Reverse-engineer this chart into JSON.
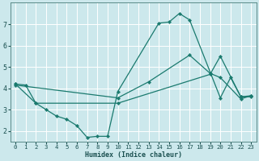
{
  "xlabel": "Humidex (Indice chaleur)",
  "background_color": "#cce8ec",
  "grid_color": "#ffffff",
  "line_color": "#1a7a6e",
  "xlim": [
    -0.5,
    23.5
  ],
  "ylim": [
    1.5,
    8.0
  ],
  "xticks": [
    0,
    1,
    2,
    3,
    4,
    5,
    6,
    7,
    8,
    9,
    10,
    11,
    12,
    13,
    14,
    15,
    16,
    17,
    18,
    19,
    20,
    21,
    22,
    23
  ],
  "yticks": [
    2,
    3,
    4,
    5,
    6,
    7
  ],
  "line1_x": [
    0,
    1,
    2,
    3,
    4,
    5,
    6,
    7,
    8,
    9,
    10,
    14,
    15,
    16,
    17,
    20,
    21,
    22,
    23
  ],
  "line1_y": [
    4.2,
    4.15,
    3.3,
    3.0,
    2.7,
    2.55,
    2.25,
    1.7,
    1.75,
    1.75,
    3.85,
    7.05,
    7.1,
    7.5,
    7.2,
    3.55,
    4.5,
    3.6,
    3.65
  ],
  "line2_x": [
    0,
    10,
    13,
    17,
    19,
    20,
    22,
    23
  ],
  "line2_y": [
    4.15,
    3.55,
    4.3,
    5.55,
    4.7,
    4.5,
    3.5,
    3.65
  ],
  "line3_x": [
    0,
    2,
    10,
    19,
    20,
    22,
    23
  ],
  "line3_y": [
    4.2,
    3.3,
    3.3,
    4.65,
    5.5,
    3.6,
    3.6
  ]
}
